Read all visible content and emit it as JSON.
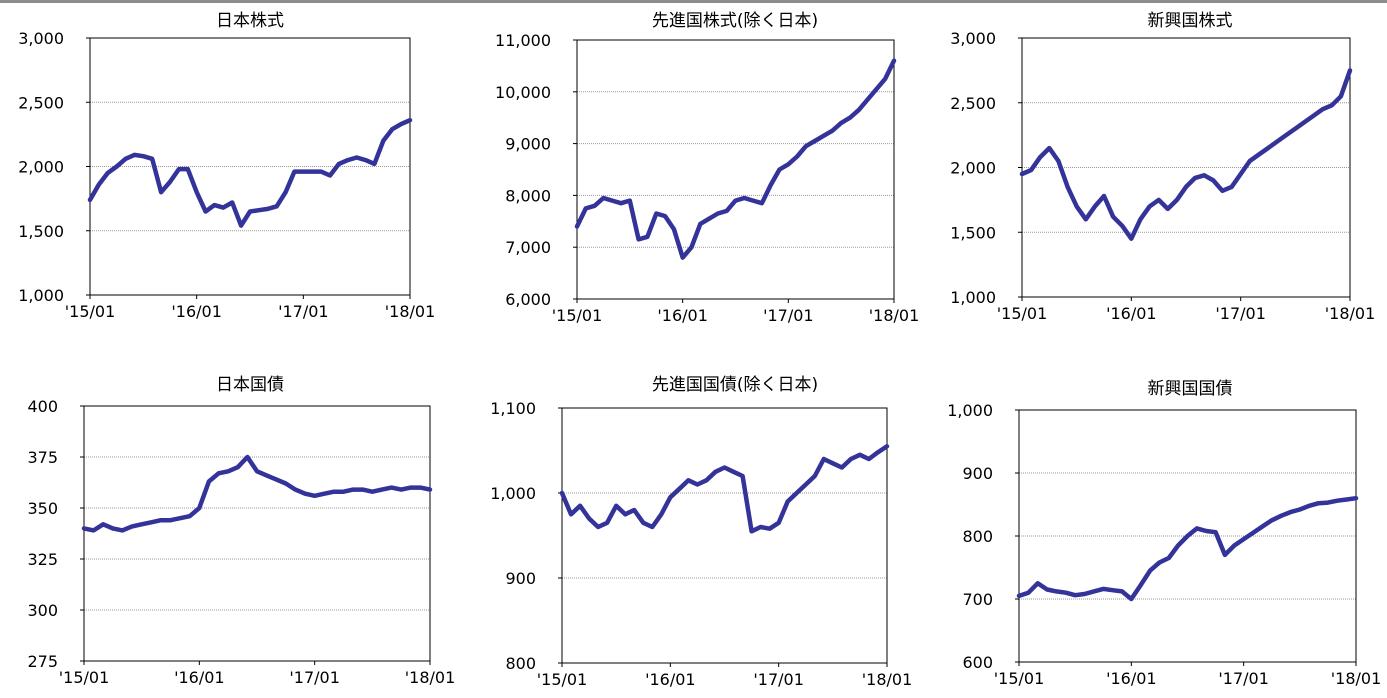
{
  "line_color": "#33339a",
  "chart_data": [
    {
      "type": "line",
      "title": "日本株式",
      "x_ticks": [
        "'15/01",
        "'16/01",
        "'17/01",
        "'18/01"
      ],
      "y_ticks": [
        "1,000",
        "1,500",
        "2,000",
        "2,500",
        "3,000"
      ],
      "ylim": [
        1000,
        3000
      ],
      "xlim": [
        "2015-01",
        "2018-01"
      ],
      "grid": "horizontal",
      "series": [
        {
          "x": [
            "2015-01",
            "2015-02",
            "2015-03",
            "2015-04",
            "2015-05",
            "2015-06",
            "2015-07",
            "2015-08",
            "2015-09",
            "2015-10",
            "2015-11",
            "2015-12",
            "2016-01",
            "2016-02",
            "2016-03",
            "2016-04",
            "2016-05",
            "2016-06",
            "2016-07",
            "2016-08",
            "2016-09",
            "2016-10",
            "2016-11",
            "2016-12",
            "2017-01",
            "2017-02",
            "2017-03",
            "2017-04",
            "2017-05",
            "2017-06",
            "2017-07",
            "2017-08",
            "2017-09",
            "2017-10",
            "2017-11",
            "2017-12",
            "2018-01"
          ],
          "values": [
            1740,
            1860,
            1950,
            2000,
            2060,
            2090,
            2080,
            2060,
            1800,
            1880,
            1980,
            1980,
            1800,
            1650,
            1700,
            1680,
            1720,
            1540,
            1650,
            1660,
            1670,
            1690,
            1800,
            1960,
            1960,
            1960,
            1960,
            1930,
            2020,
            2050,
            2070,
            2050,
            2020,
            2200,
            2290,
            2330,
            2360
          ]
        }
      ]
    },
    {
      "type": "line",
      "title": "先進国株式(除く日本)",
      "x_ticks": [
        "'15/01",
        "'16/01",
        "'17/01",
        "'18/01"
      ],
      "y_ticks": [
        "6,000",
        "7,000",
        "8,000",
        "9,000",
        "10,000",
        "11,000"
      ],
      "ylim": [
        6000,
        11000
      ],
      "xlim": [
        "2015-01",
        "2018-01"
      ],
      "grid": "horizontal",
      "series": [
        {
          "x": [
            "2015-01",
            "2015-02",
            "2015-03",
            "2015-04",
            "2015-05",
            "2015-06",
            "2015-07",
            "2015-08",
            "2015-09",
            "2015-10",
            "2015-11",
            "2015-12",
            "2016-01",
            "2016-02",
            "2016-03",
            "2016-04",
            "2016-05",
            "2016-06",
            "2016-07",
            "2016-08",
            "2016-09",
            "2016-10",
            "2016-11",
            "2016-12",
            "2017-01",
            "2017-02",
            "2017-03",
            "2017-04",
            "2017-05",
            "2017-06",
            "2017-07",
            "2017-08",
            "2017-09",
            "2017-10",
            "2017-11",
            "2017-12",
            "2018-01"
          ],
          "values": [
            7400,
            7750,
            7800,
            7950,
            7900,
            7850,
            7900,
            7150,
            7200,
            7650,
            7600,
            7350,
            6800,
            7000,
            7450,
            7550,
            7650,
            7700,
            7900,
            7950,
            7900,
            7850,
            8200,
            8500,
            8600,
            8750,
            8950,
            9050,
            9150,
            9250,
            9400,
            9500,
            9650,
            9850,
            10050,
            10250,
            10600
          ]
        }
      ]
    },
    {
      "type": "line",
      "title": "新興国株式",
      "x_ticks": [
        "'15/01",
        "'16/01",
        "'17/01",
        "'18/01"
      ],
      "y_ticks": [
        "1,000",
        "1,500",
        "2,000",
        "2,500",
        "3,000"
      ],
      "ylim": [
        1000,
        3000
      ],
      "xlim": [
        "2015-01",
        "2018-01"
      ],
      "grid": "horizontal",
      "series": [
        {
          "x": [
            "2015-01",
            "2015-02",
            "2015-03",
            "2015-04",
            "2015-05",
            "2015-06",
            "2015-07",
            "2015-08",
            "2015-09",
            "2015-10",
            "2015-11",
            "2015-12",
            "2016-01",
            "2016-02",
            "2016-03",
            "2016-04",
            "2016-05",
            "2016-06",
            "2016-07",
            "2016-08",
            "2016-09",
            "2016-10",
            "2016-11",
            "2016-12",
            "2017-01",
            "2017-02",
            "2017-03",
            "2017-04",
            "2017-05",
            "2017-06",
            "2017-07",
            "2017-08",
            "2017-09",
            "2017-10",
            "2017-11",
            "2017-12",
            "2018-01"
          ],
          "values": [
            1950,
            1980,
            2080,
            2150,
            2050,
            1850,
            1700,
            1600,
            1700,
            1780,
            1620,
            1550,
            1450,
            1600,
            1700,
            1750,
            1680,
            1750,
            1850,
            1920,
            1940,
            1900,
            1820,
            1850,
            1950,
            2050,
            2100,
            2150,
            2200,
            2250,
            2300,
            2350,
            2400,
            2450,
            2480,
            2550,
            2750
          ]
        }
      ]
    },
    {
      "type": "line",
      "title": "日本国債",
      "x_ticks": [
        "'15/01",
        "'16/01",
        "'17/01",
        "'18/01"
      ],
      "y_ticks": [
        "275",
        "300",
        "325",
        "350",
        "375",
        "400"
      ],
      "ylim": [
        275,
        400
      ],
      "xlim": [
        "2015-01",
        "2018-01"
      ],
      "grid": "horizontal",
      "series": [
        {
          "x": [
            "2015-01",
            "2015-02",
            "2015-03",
            "2015-04",
            "2015-05",
            "2015-06",
            "2015-07",
            "2015-08",
            "2015-09",
            "2015-10",
            "2015-11",
            "2015-12",
            "2016-01",
            "2016-02",
            "2016-03",
            "2016-04",
            "2016-05",
            "2016-06",
            "2016-07",
            "2016-08",
            "2016-09",
            "2016-10",
            "2016-11",
            "2016-12",
            "2017-01",
            "2017-02",
            "2017-03",
            "2017-04",
            "2017-05",
            "2017-06",
            "2017-07",
            "2017-08",
            "2017-09",
            "2017-10",
            "2017-11",
            "2017-12",
            "2018-01"
          ],
          "values": [
            340,
            339,
            342,
            340,
            339,
            341,
            342,
            343,
            344,
            344,
            345,
            346,
            350,
            363,
            367,
            368,
            370,
            375,
            368,
            366,
            364,
            362,
            359,
            357,
            356,
            357,
            358,
            358,
            359,
            359,
            358,
            359,
            360,
            359,
            360,
            360,
            359
          ]
        }
      ]
    },
    {
      "type": "line",
      "title": "先進国国債(除く日本)",
      "x_ticks": [
        "'15/01",
        "'16/01",
        "'17/01",
        "'18/01"
      ],
      "y_ticks": [
        "800",
        "900",
        "1,000",
        "1,100"
      ],
      "ylim": [
        800,
        1100
      ],
      "xlim": [
        "2015-01",
        "2018-01"
      ],
      "grid": "horizontal",
      "series": [
        {
          "x": [
            "2015-01",
            "2015-02",
            "2015-03",
            "2015-04",
            "2015-05",
            "2015-06",
            "2015-07",
            "2015-08",
            "2015-09",
            "2015-10",
            "2015-11",
            "2015-12",
            "2016-01",
            "2016-02",
            "2016-03",
            "2016-04",
            "2016-05",
            "2016-06",
            "2016-07",
            "2016-08",
            "2016-09",
            "2016-10",
            "2016-11",
            "2016-12",
            "2017-01",
            "2017-02",
            "2017-03",
            "2017-04",
            "2017-05",
            "2017-06",
            "2017-07",
            "2017-08",
            "2017-09",
            "2017-10",
            "2017-11",
            "2017-12",
            "2018-01"
          ],
          "values": [
            1000,
            975,
            985,
            970,
            960,
            965,
            985,
            975,
            980,
            965,
            960,
            975,
            995,
            1005,
            1015,
            1010,
            1015,
            1025,
            1030,
            1025,
            1020,
            955,
            960,
            958,
            965,
            990,
            1000,
            1010,
            1020,
            1040,
            1035,
            1030,
            1040,
            1045,
            1040,
            1048,
            1055
          ]
        }
      ]
    },
    {
      "type": "line",
      "title": "新興国国債",
      "x_ticks": [
        "'15/01",
        "'16/01",
        "'17/01",
        "'18/01"
      ],
      "y_ticks": [
        "600",
        "700",
        "800",
        "900",
        "1,000"
      ],
      "ylim": [
        600,
        1000
      ],
      "xlim": [
        "2015-01",
        "2018-01"
      ],
      "grid": "horizontal",
      "series": [
        {
          "x": [
            "2015-01",
            "2015-02",
            "2015-03",
            "2015-04",
            "2015-05",
            "2015-06",
            "2015-07",
            "2015-08",
            "2015-09",
            "2015-10",
            "2015-11",
            "2015-12",
            "2016-01",
            "2016-02",
            "2016-03",
            "2016-04",
            "2016-05",
            "2016-06",
            "2016-07",
            "2016-08",
            "2016-09",
            "2016-10",
            "2016-11",
            "2016-12",
            "2017-01",
            "2017-02",
            "2017-03",
            "2017-04",
            "2017-05",
            "2017-06",
            "2017-07",
            "2017-08",
            "2017-09",
            "2017-10",
            "2017-11",
            "2017-12",
            "2018-01"
          ],
          "values": [
            705,
            710,
            725,
            715,
            712,
            710,
            706,
            708,
            712,
            716,
            714,
            712,
            700,
            722,
            745,
            758,
            765,
            785,
            800,
            812,
            808,
            806,
            770,
            785,
            795,
            805,
            815,
            825,
            832,
            838,
            842,
            848,
            852,
            853,
            856,
            858,
            860
          ]
        }
      ]
    }
  ]
}
